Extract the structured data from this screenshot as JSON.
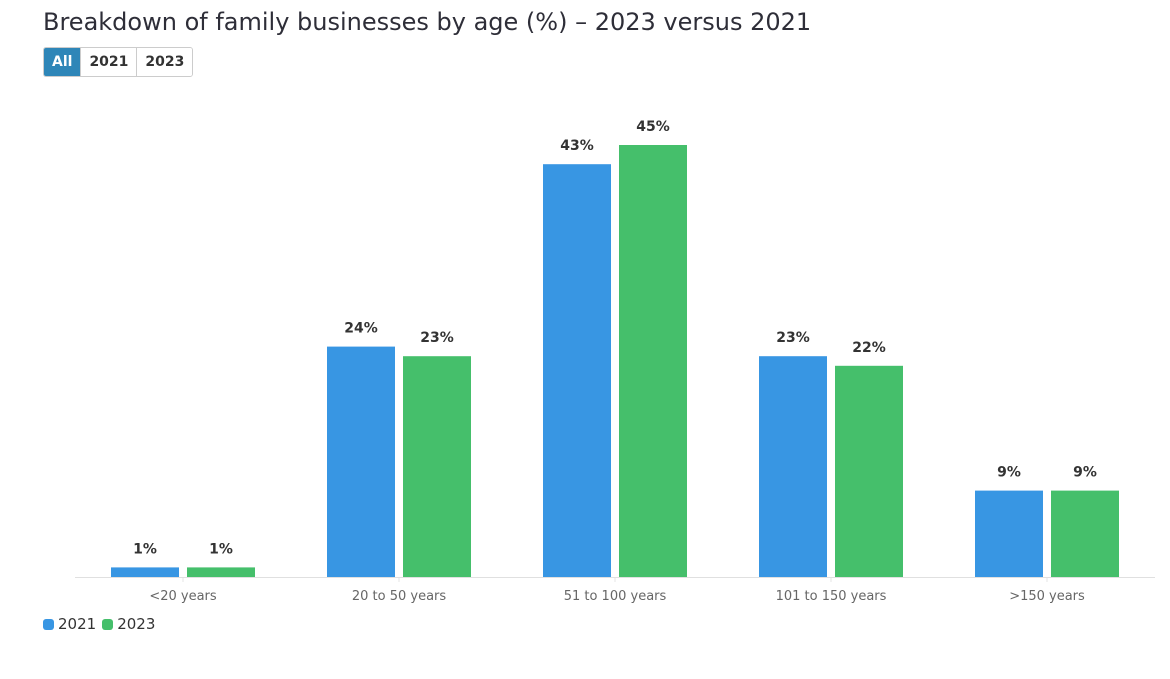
{
  "title": "Breakdown of family businesses by age (%) – 2023 versus 2021",
  "filters": [
    {
      "label": "All",
      "active": true
    },
    {
      "label": "2021",
      "active": false
    },
    {
      "label": "2023",
      "active": false
    }
  ],
  "chart_data": {
    "type": "bar",
    "title": "Breakdown of family businesses by age (%) – 2023 versus 2021",
    "categories": [
      "<20 years",
      "20 to 50 years",
      "51 to 100 years",
      "101 to 150 years",
      ">150 years"
    ],
    "series": [
      {
        "name": "2021",
        "color": "#3896e3",
        "values": [
          1,
          24,
          43,
          23,
          9
        ]
      },
      {
        "name": "2023",
        "color": "#45bf6b",
        "values": [
          1,
          23,
          45,
          22,
          9
        ]
      }
    ],
    "value_suffix": "%",
    "ylim": [
      0,
      45
    ],
    "grid": false,
    "legend_position": "bottom-left"
  }
}
